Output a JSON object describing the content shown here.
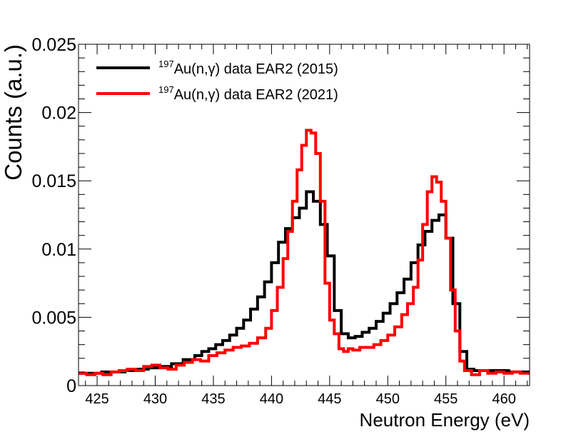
{
  "chart_data": {
    "type": "line",
    "style": "step-histogram",
    "title": "",
    "xlabel": "Neutron Energy (eV)",
    "ylabel": "Counts (a.u.)",
    "xlim": [
      423.4,
      462.2
    ],
    "ylim": [
      0,
      0.025
    ],
    "grid": false,
    "legend_position": "top-left",
    "x_ticks": [
      425,
      430,
      435,
      440,
      445,
      450,
      455,
      460
    ],
    "x_tick_labels": [
      "425",
      "430",
      "435",
      "440",
      "445",
      "450",
      "455",
      "460"
    ],
    "y_ticks": [
      0,
      0.005,
      0.01,
      0.015,
      0.02,
      0.025
    ],
    "y_tick_labels": [
      "0",
      "0.005",
      "0.01",
      "0.015",
      "0.02",
      "0.025"
    ],
    "legend": [
      {
        "sup": "197",
        "text": "Au(n,γ) data EAR2 (2015)",
        "color": "#000000"
      },
      {
        "sup": "197",
        "text": "Au(n,γ) data EAR2 (2021)",
        "color": "#ff0000"
      }
    ],
    "series": [
      {
        "name": "197Au(n,γ) data EAR2 (2015)",
        "color": "#000000",
        "x": [
          423.4,
          424.4,
          425.4,
          426.4,
          427.4,
          428.4,
          429.4,
          430.4,
          431.4,
          432.4,
          433.4,
          434.0,
          434.6,
          435.2,
          435.8,
          436.4,
          437.0,
          437.6,
          438.2,
          438.8,
          439.4,
          440.0,
          440.6,
          441.2,
          441.8,
          442.4,
          443.0,
          443.6,
          444.2,
          444.8,
          445.4,
          446.0,
          446.6,
          447.2,
          447.8,
          448.4,
          449.0,
          449.6,
          450.2,
          450.8,
          451.4,
          452.0,
          452.6,
          453.2,
          453.8,
          454.4,
          455.0,
          455.6,
          456.2,
          456.8,
          457.4,
          458.4,
          459.4,
          460.4,
          461.4
        ],
        "values": [
          0.0009,
          0.0009,
          0.001,
          0.001,
          0.0011,
          0.0012,
          0.0013,
          0.0014,
          0.0016,
          0.0019,
          0.0022,
          0.0025,
          0.0027,
          0.003,
          0.0033,
          0.0037,
          0.0042,
          0.0048,
          0.0056,
          0.0065,
          0.0076,
          0.009,
          0.0105,
          0.0115,
          0.0123,
          0.013,
          0.0142,
          0.0135,
          0.0118,
          0.0095,
          0.0055,
          0.0038,
          0.0035,
          0.0036,
          0.0039,
          0.0042,
          0.0047,
          0.0053,
          0.006,
          0.0068,
          0.0078,
          0.009,
          0.0103,
          0.0113,
          0.0121,
          0.0125,
          0.0108,
          0.006,
          0.0025,
          0.0012,
          0.0011,
          0.0011,
          0.0011,
          0.001,
          0.001
        ]
      },
      {
        "name": "197Au(n,γ) data EAR2 (2021)",
        "color": "#ff0000",
        "x": [
          423.4,
          424.1,
          424.8,
          425.5,
          426.2,
          426.9,
          427.6,
          428.3,
          429.0,
          429.7,
          430.4,
          431.1,
          431.8,
          432.5,
          433.2,
          433.9,
          434.6,
          435.3,
          436.0,
          436.7,
          437.4,
          438.1,
          438.8,
          439.5,
          440.0,
          440.5,
          441.0,
          441.4,
          441.8,
          442.2,
          442.6,
          443.0,
          443.4,
          443.8,
          444.2,
          444.6,
          445.0,
          445.4,
          445.8,
          446.2,
          446.6,
          447.0,
          447.6,
          448.2,
          448.8,
          449.4,
          450.0,
          450.6,
          451.2,
          451.7,
          452.2,
          452.6,
          453.0,
          453.4,
          453.8,
          454.2,
          454.6,
          455.0,
          455.4,
          455.8,
          456.2,
          456.6,
          457.2,
          457.9,
          458.6,
          459.3,
          460.0,
          460.7,
          461.4
        ],
        "values": [
          0.0009,
          0.0008,
          0.0009,
          0.0008,
          0.001,
          0.0011,
          0.0012,
          0.0011,
          0.0014,
          0.0015,
          0.0013,
          0.0012,
          0.0015,
          0.0017,
          0.0019,
          0.0018,
          0.0022,
          0.0024,
          0.0026,
          0.0028,
          0.0029,
          0.0031,
          0.0035,
          0.0042,
          0.0055,
          0.0072,
          0.0093,
          0.0113,
          0.0135,
          0.0158,
          0.0176,
          0.0187,
          0.0185,
          0.017,
          0.0135,
          0.0075,
          0.0048,
          0.0038,
          0.0027,
          0.0025,
          0.0027,
          0.0026,
          0.0028,
          0.0028,
          0.003,
          0.0033,
          0.0037,
          0.0043,
          0.0052,
          0.006,
          0.0072,
          0.0092,
          0.0118,
          0.0142,
          0.0153,
          0.0149,
          0.0135,
          0.0108,
          0.007,
          0.004,
          0.0018,
          0.0011,
          0.0008,
          0.0011,
          0.0009,
          0.001,
          0.0009,
          0.001,
          0.0009
        ]
      }
    ]
  }
}
